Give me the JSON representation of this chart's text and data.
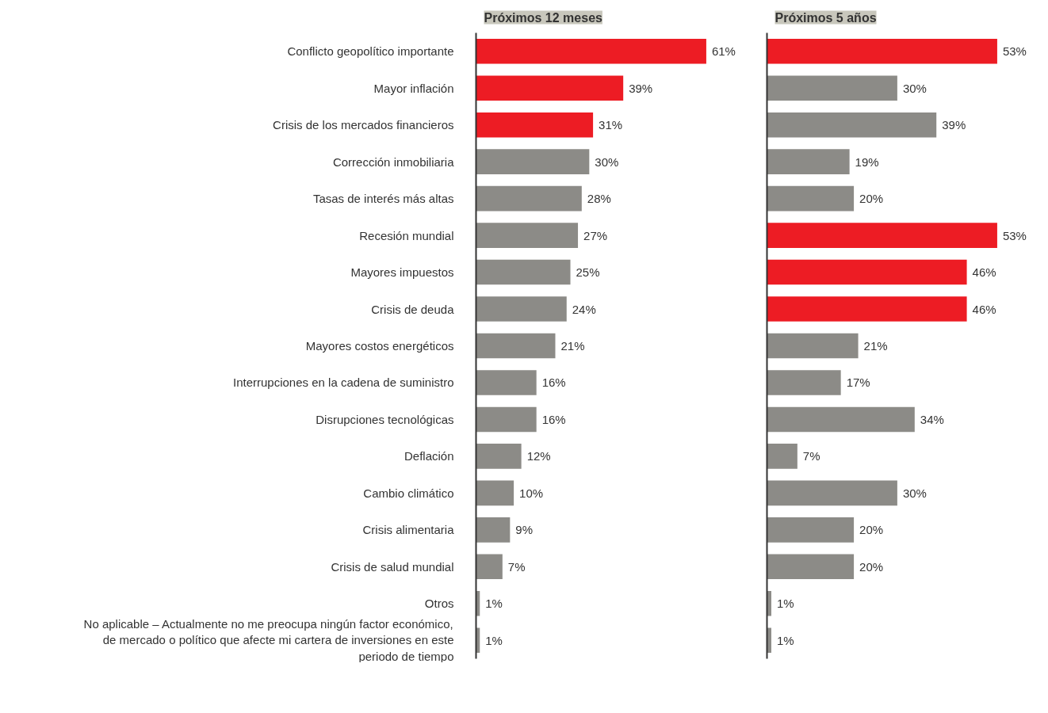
{
  "chart_data": [
    {
      "type": "bar",
      "orientation": "horizontal",
      "title": "Próximos 12 meses",
      "tick_labels": "y",
      "data_labels": false,
      "categories": [
        "Conflicto geopolítico importante",
        "Mayor inflación",
        "Crisis de los mercados financieros",
        "Corrección inmobiliaria",
        "Tasas de interés más altas",
        "Recesión mundial",
        "Mayores impuestos",
        "Crisis de deuda",
        "Mayores costos energéticos",
        "Interrupciones en la cadena de suministro",
        "Disrupciones tecnológicas",
        "Deflación",
        "Cambio climático",
        "Crisis alimentaria",
        "Crisis de salud mundial",
        "Otros",
        "No aplicable – Actualmente no me preocupa ningún factor económico, de mercado o político que afecte mi cartera de inversiones en este periodo de tiempo"
      ],
      "values": [
        61,
        39,
        31,
        30,
        28,
        27,
        25,
        24,
        21,
        16,
        16,
        12,
        10,
        9,
        7,
        1,
        1
      ],
      "value_labels": [
        "61%",
        "39%",
        "31%",
        "30%",
        "28%",
        "27%",
        "25%",
        "24%",
        "21%",
        "16%",
        "16%",
        "12%",
        "10%",
        "9%",
        "7%",
        "1%",
        "1%"
      ],
      "colors": [
        "#ed1c24",
        "#ed1c24",
        "#ed1c24",
        "#8c8b87",
        "#8c8b87",
        "#8c8b87",
        "#8c8b87",
        "#8c8b87",
        "#8c8b87",
        "#8c8b87",
        "#8c8b87",
        "#8c8b87",
        "#8c8b87",
        "#8c8b87",
        "#8c8b87",
        "#8c8b87",
        "#8c8b87"
      ]
    },
    {
      "type": "bar",
      "orientation": "horizontal",
      "title": "Próximos 5 años",
      "tick_labels": false,
      "categories": [
        null,
        null,
        null,
        null,
        null,
        null,
        null,
        null,
        null,
        null,
        null,
        null,
        null,
        null,
        null,
        null,
        null
      ],
      "values": [
        53,
        30,
        39,
        19,
        20,
        53,
        46,
        46,
        21,
        17,
        34,
        7,
        30,
        20,
        20,
        1,
        1
      ],
      "value_labels": [
        "53%",
        "30%",
        "39%",
        "19%",
        "20%",
        "53%",
        "46%",
        "46%",
        "21%",
        "17%",
        "34%",
        "7%",
        "30%",
        "20%",
        "20%",
        "1%",
        "1%"
      ],
      "colors": [
        "#ed1c24",
        "#8c8b87",
        "#8c8b87",
        "#8c8b87",
        "#8c8b87",
        "#ed1c24",
        "#ed1c24",
        "#ed1c24",
        "#8c8b87",
        "#8c8b87",
        "#8c8b87",
        "#8c8b87",
        "#8c8b87",
        "#8c8b87",
        "#8c8b87",
        "#8c8b87",
        "#8c8b87"
      ]
    }
  ]
}
